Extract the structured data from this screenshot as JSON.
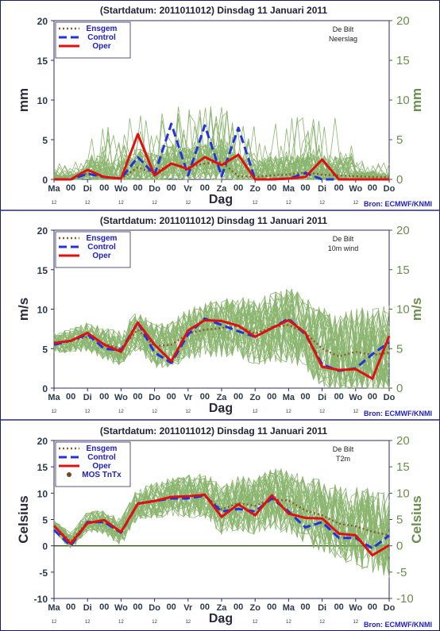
{
  "source_text": "Bron: ECMWF/KNMI",
  "x_axis": {
    "label": "Dag",
    "days": [
      "Ma",
      "Di",
      "Wo",
      "Do",
      "Vr",
      "Za",
      "Zo",
      "Ma",
      "Di",
      "Wo",
      "Do"
    ],
    "days_neerslag": [
      "Ma",
      "Di",
      "Wo",
      "Do",
      "Vr",
      "Za",
      "Zo",
      "Ma",
      "Di",
      "Wo",
      "Do"
    ],
    "sub_hours": [
      "12",
      "12",
      "12",
      "12",
      "12",
      "12",
      "12",
      "12",
      "12",
      "12"
    ],
    "mid_marker": "00"
  },
  "colors": {
    "ensemble": "#7fae60",
    "ensgem": "#8b5a2b",
    "control": "#2233dd",
    "oper": "#e01010",
    "axis": "#4a5a30",
    "frame": "#2c2c60",
    "zero_line": "#2a5a10",
    "mos": "#6b4a25"
  },
  "chart_data": [
    {
      "type": "line",
      "title": "(Startdatum: 2011011012)   Dinsdag   11 Januari   2011",
      "station": "De Bilt",
      "variable": "Neerslag",
      "ylabel": "mm",
      "ylim": [
        0,
        20
      ],
      "yticks": [
        0,
        5,
        10,
        15,
        20
      ],
      "x": [
        0,
        0.5,
        1,
        1.5,
        2,
        2.5,
        3,
        3.5,
        4,
        4.5,
        5,
        5.5,
        6,
        6.5,
        7,
        7.5,
        8,
        8.5,
        9,
        9.5,
        10
      ],
      "legend": [
        "Ensgem",
        "Control",
        "Oper"
      ],
      "series": [
        {
          "name": "Ensgem",
          "values": [
            0,
            0,
            0.8,
            0.3,
            0.1,
            1.5,
            0.8,
            2,
            1.5,
            2,
            2.2,
            0.4,
            0.3,
            0.5,
            0.6,
            0.9,
            0.6,
            0.5,
            0.4,
            0.3,
            0.3
          ]
        },
        {
          "name": "Control",
          "values": [
            0,
            0,
            0.7,
            0.3,
            0.1,
            2.8,
            0.6,
            7,
            0.5,
            6.8,
            0.4,
            6.5,
            0,
            0,
            0.1,
            0.8,
            0,
            0,
            0,
            0,
            0
          ]
        },
        {
          "name": "Oper",
          "values": [
            0,
            0,
            1.2,
            0.3,
            0.1,
            5.7,
            0.5,
            2,
            1.3,
            2.8,
            1.8,
            3.1,
            0,
            0,
            0.1,
            0.3,
            2.5,
            0,
            0,
            0,
            0
          ]
        }
      ]
    },
    {
      "type": "line",
      "title": "(Startdatum: 2011011012)   Dinsdag   11 Januari   2011",
      "station": "De Bilt",
      "variable": "10m wind",
      "ylabel": "m/s",
      "ylim": [
        0,
        20
      ],
      "yticks": [
        0,
        5,
        10,
        15,
        20
      ],
      "x": [
        0,
        0.5,
        1,
        1.5,
        2,
        2.5,
        3,
        3.5,
        4,
        4.5,
        5,
        5.5,
        6,
        6.5,
        7,
        7.5,
        8,
        8.5,
        9,
        9.5,
        10
      ],
      "legend": [
        "Ensgem",
        "Control",
        "Oper"
      ],
      "series": [
        {
          "name": "Ensgem",
          "values": [
            5.8,
            6,
            6.5,
            5.6,
            5,
            7.4,
            5.3,
            5.5,
            6.9,
            7.4,
            7.6,
            7.9,
            6.9,
            7.7,
            8,
            7,
            5,
            4,
            4.6,
            4.2,
            4.5
          ]
        },
        {
          "name": "Control",
          "values": [
            5.5,
            6,
            6.8,
            5,
            4.8,
            8.3,
            4.5,
            3.2,
            6.8,
            8.8,
            8,
            7.2,
            6.5,
            7.6,
            8.8,
            6.8,
            3,
            2.2,
            2.5,
            4.3,
            5.8
          ]
        },
        {
          "name": "Oper",
          "values": [
            5.7,
            6,
            7,
            5.5,
            4.6,
            8.3,
            5.5,
            3.4,
            7.3,
            8.6,
            8.5,
            7.9,
            6.5,
            7.6,
            8.6,
            7,
            2.7,
            2.3,
            2.4,
            1.2,
            6.6
          ]
        }
      ]
    },
    {
      "type": "line",
      "title": "(Startdatum: 2011011012)   Dinsdag   11 Januari   2011",
      "station": "De Bilt",
      "variable": "T2m",
      "ylabel": "Celsius",
      "ylim": [
        -10,
        20
      ],
      "yticks": [
        -10,
        -5,
        0,
        5,
        10,
        15,
        20
      ],
      "x": [
        0,
        0.5,
        1,
        1.5,
        2,
        2.5,
        3,
        3.5,
        4,
        4.5,
        5,
        5.5,
        6,
        6.5,
        7,
        7.5,
        8,
        8.5,
        9,
        9.5,
        10
      ],
      "legend": [
        "Ensgem",
        "Control",
        "Oper",
        "MOS TnTx"
      ],
      "series": [
        {
          "name": "Ensgem",
          "values": [
            3.8,
            0.8,
            4.6,
            4.4,
            2.6,
            8.1,
            8.6,
            9.2,
            9.4,
            9.5,
            6.9,
            8.1,
            7.6,
            8.8,
            8.6,
            6.7,
            5.8,
            4.2,
            3.7,
            2.7,
            2
          ]
        },
        {
          "name": "Control",
          "values": [
            3,
            0,
            4.5,
            4.5,
            2.5,
            8,
            8.5,
            9,
            9,
            9.5,
            6.5,
            7,
            6.5,
            9,
            6.5,
            3.5,
            4.5,
            1.5,
            1.5,
            -0.5,
            2
          ]
        },
        {
          "name": "Oper",
          "values": [
            3.8,
            0.4,
            4.3,
            4.9,
            2.6,
            8,
            8.5,
            9.3,
            9.4,
            9.7,
            5.5,
            7.9,
            5.8,
            9.6,
            6.1,
            5.3,
            5.2,
            2.3,
            2,
            -1.8,
            0.1
          ]
        },
        {
          "name": "MOS TnTx",
          "values": [
            null,
            null,
            null,
            null,
            null,
            null,
            null,
            null,
            null,
            null,
            null,
            null,
            null,
            null,
            null,
            null,
            null,
            null,
            null,
            null,
            null
          ]
        }
      ]
    }
  ]
}
